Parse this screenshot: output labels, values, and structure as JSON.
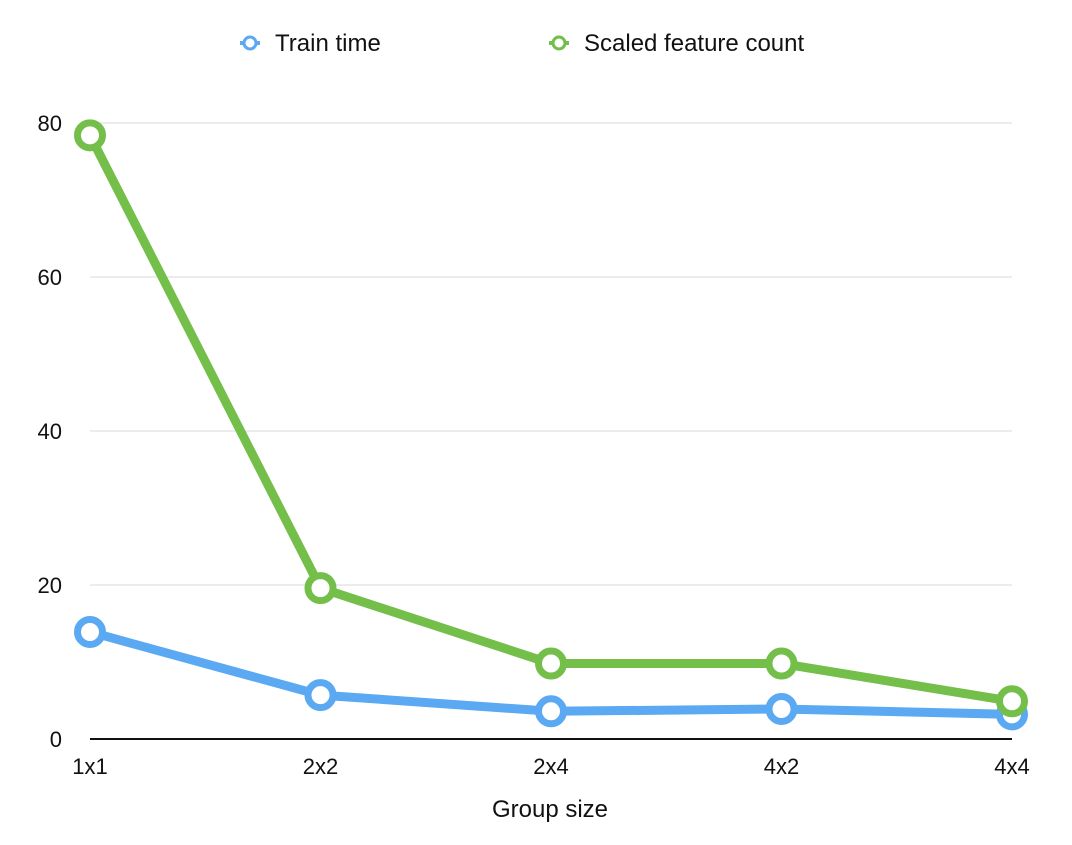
{
  "chart_data": {
    "type": "line",
    "title": "",
    "xlabel": "Group size",
    "ylabel": "",
    "categories": [
      "1x1",
      "2x2",
      "2x4",
      "4x2",
      "4x4"
    ],
    "ylim": [
      0,
      80
    ],
    "yticks": [
      "0",
      "20",
      "40",
      "60",
      "80"
    ],
    "grid": true,
    "legend_position": "top",
    "series": [
      {
        "name": "Train time",
        "color": "#5AA9F2",
        "values": [
          13.9,
          5.7,
          3.6,
          3.9,
          3.2
        ]
      },
      {
        "name": "Scaled feature count",
        "color": "#74BE4A",
        "values": [
          78.4,
          19.6,
          9.8,
          9.8,
          4.9
        ]
      }
    ]
  }
}
